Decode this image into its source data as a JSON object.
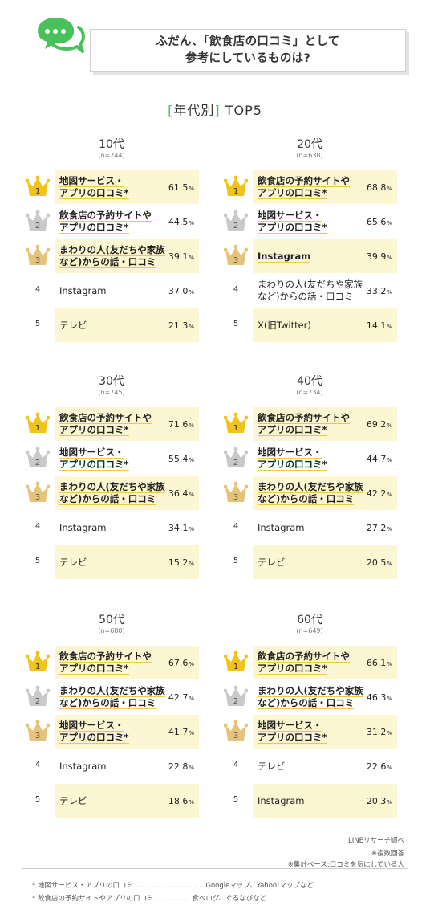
{
  "header": {
    "title_line1": "ふだん、「飲食店の口コミ」として",
    "title_line2": "参考にしているものは?"
  },
  "section": {
    "bracket_open": "[",
    "label": "年代別",
    "bracket_close": "]",
    "suffix": "TOP5"
  },
  "colors": {
    "gold": "#f2c319",
    "silver": "#c9c9c9",
    "bronze": "#e6c37a",
    "highlight": "#fdf6d2",
    "accent": "#49c15a"
  },
  "chart_data": [
    {
      "type": "table",
      "age": "10代",
      "n": "(n=244)",
      "rows": [
        {
          "rank": "1",
          "lines": [
            "地図サービス・",
            "アプリの口コミ*"
          ],
          "value": 61.5
        },
        {
          "rank": "2",
          "lines": [
            "飲食店の予約サイトや",
            "アプリの口コミ*"
          ],
          "value": 44.5
        },
        {
          "rank": "3",
          "lines": [
            "まわりの人(友だちや家族",
            "など)からの話・口コミ"
          ],
          "value": 39.1
        },
        {
          "rank": "4",
          "lines": [
            "Instagram"
          ],
          "value": 37.0
        },
        {
          "rank": "5",
          "lines": [
            "テレビ"
          ],
          "value": 21.3
        }
      ]
    },
    {
      "type": "table",
      "age": "20代",
      "n": "(n=638)",
      "rows": [
        {
          "rank": "1",
          "lines": [
            "飲食店の予約サイトや",
            "アプリの口コミ*"
          ],
          "value": 68.8
        },
        {
          "rank": "2",
          "lines": [
            "地図サービス・",
            "アプリの口コミ*"
          ],
          "value": 65.6
        },
        {
          "rank": "3",
          "lines": [
            "Instagram"
          ],
          "value": 39.9
        },
        {
          "rank": "4",
          "lines": [
            "まわりの人(友だちや家族",
            "など)からの話・口コミ"
          ],
          "value": 33.2
        },
        {
          "rank": "5",
          "lines": [
            "X(旧Twitter)"
          ],
          "value": 14.1
        }
      ]
    },
    {
      "type": "table",
      "age": "30代",
      "n": "(n=745)",
      "rows": [
        {
          "rank": "1",
          "lines": [
            "飲食店の予約サイトや",
            "アプリの口コミ*"
          ],
          "value": 71.6
        },
        {
          "rank": "2",
          "lines": [
            "地図サービス・",
            "アプリの口コミ*"
          ],
          "value": 55.4
        },
        {
          "rank": "3",
          "lines": [
            "まわりの人(友だちや家族",
            "など)からの話・口コミ"
          ],
          "value": 36.4
        },
        {
          "rank": "4",
          "lines": [
            "Instagram"
          ],
          "value": 34.1
        },
        {
          "rank": "5",
          "lines": [
            "テレビ"
          ],
          "value": 15.2
        }
      ]
    },
    {
      "type": "table",
      "age": "40代",
      "n": "(n=734)",
      "rows": [
        {
          "rank": "1",
          "lines": [
            "飲食店の予約サイトや",
            "アプリの口コミ*"
          ],
          "value": 69.2
        },
        {
          "rank": "2",
          "lines": [
            "地図サービス・",
            "アプリの口コミ*"
          ],
          "value": 44.7
        },
        {
          "rank": "3",
          "lines": [
            "まわりの人(友だちや家族",
            "など)からの話・口コミ"
          ],
          "value": 42.2
        },
        {
          "rank": "4",
          "lines": [
            "Instagram"
          ],
          "value": 27.2
        },
        {
          "rank": "5",
          "lines": [
            "テレビ"
          ],
          "value": 20.5
        }
      ]
    },
    {
      "type": "table",
      "age": "50代",
      "n": "(n=680)",
      "rows": [
        {
          "rank": "1",
          "lines": [
            "飲食店の予約サイトや",
            "アプリの口コミ*"
          ],
          "value": 67.6
        },
        {
          "rank": "2",
          "lines": [
            "まわりの人(友だちや家族",
            "など)からの話・口コミ"
          ],
          "value": 42.7
        },
        {
          "rank": "3",
          "lines": [
            "地図サービス・",
            "アプリの口コミ*"
          ],
          "value": 41.7
        },
        {
          "rank": "4",
          "lines": [
            "Instagram"
          ],
          "value": 22.8
        },
        {
          "rank": "5",
          "lines": [
            "テレビ"
          ],
          "value": 18.6
        }
      ]
    },
    {
      "type": "table",
      "age": "60代",
      "n": "(n=649)",
      "rows": [
        {
          "rank": "1",
          "lines": [
            "飲食店の予約サイトや",
            "アプリの口コミ*"
          ],
          "value": 66.1
        },
        {
          "rank": "2",
          "lines": [
            "まわりの人(友だちや家族",
            "など)からの話・口コミ"
          ],
          "value": 46.3
        },
        {
          "rank": "3",
          "lines": [
            "地図サービス・",
            "アプリの口コミ*"
          ],
          "value": 31.2
        },
        {
          "rank": "4",
          "lines": [
            "テレビ"
          ],
          "value": 22.6
        },
        {
          "rank": "5",
          "lines": [
            "Instagram"
          ],
          "value": 20.3
        }
      ]
    }
  ],
  "percent_sign": "%",
  "credits": [
    "LINEリサーチ調べ",
    "※複数回答",
    "※集計ベース:口コミを気にしている人"
  ],
  "footnotes": [
    "* 地図サービス・アプリの口コミ ………………………… Googleマップ、Yahoo!マップなど",
    "* 飲食店の予約サイトやアプリの口コミ …………… 食べログ、ぐるなびなど"
  ]
}
